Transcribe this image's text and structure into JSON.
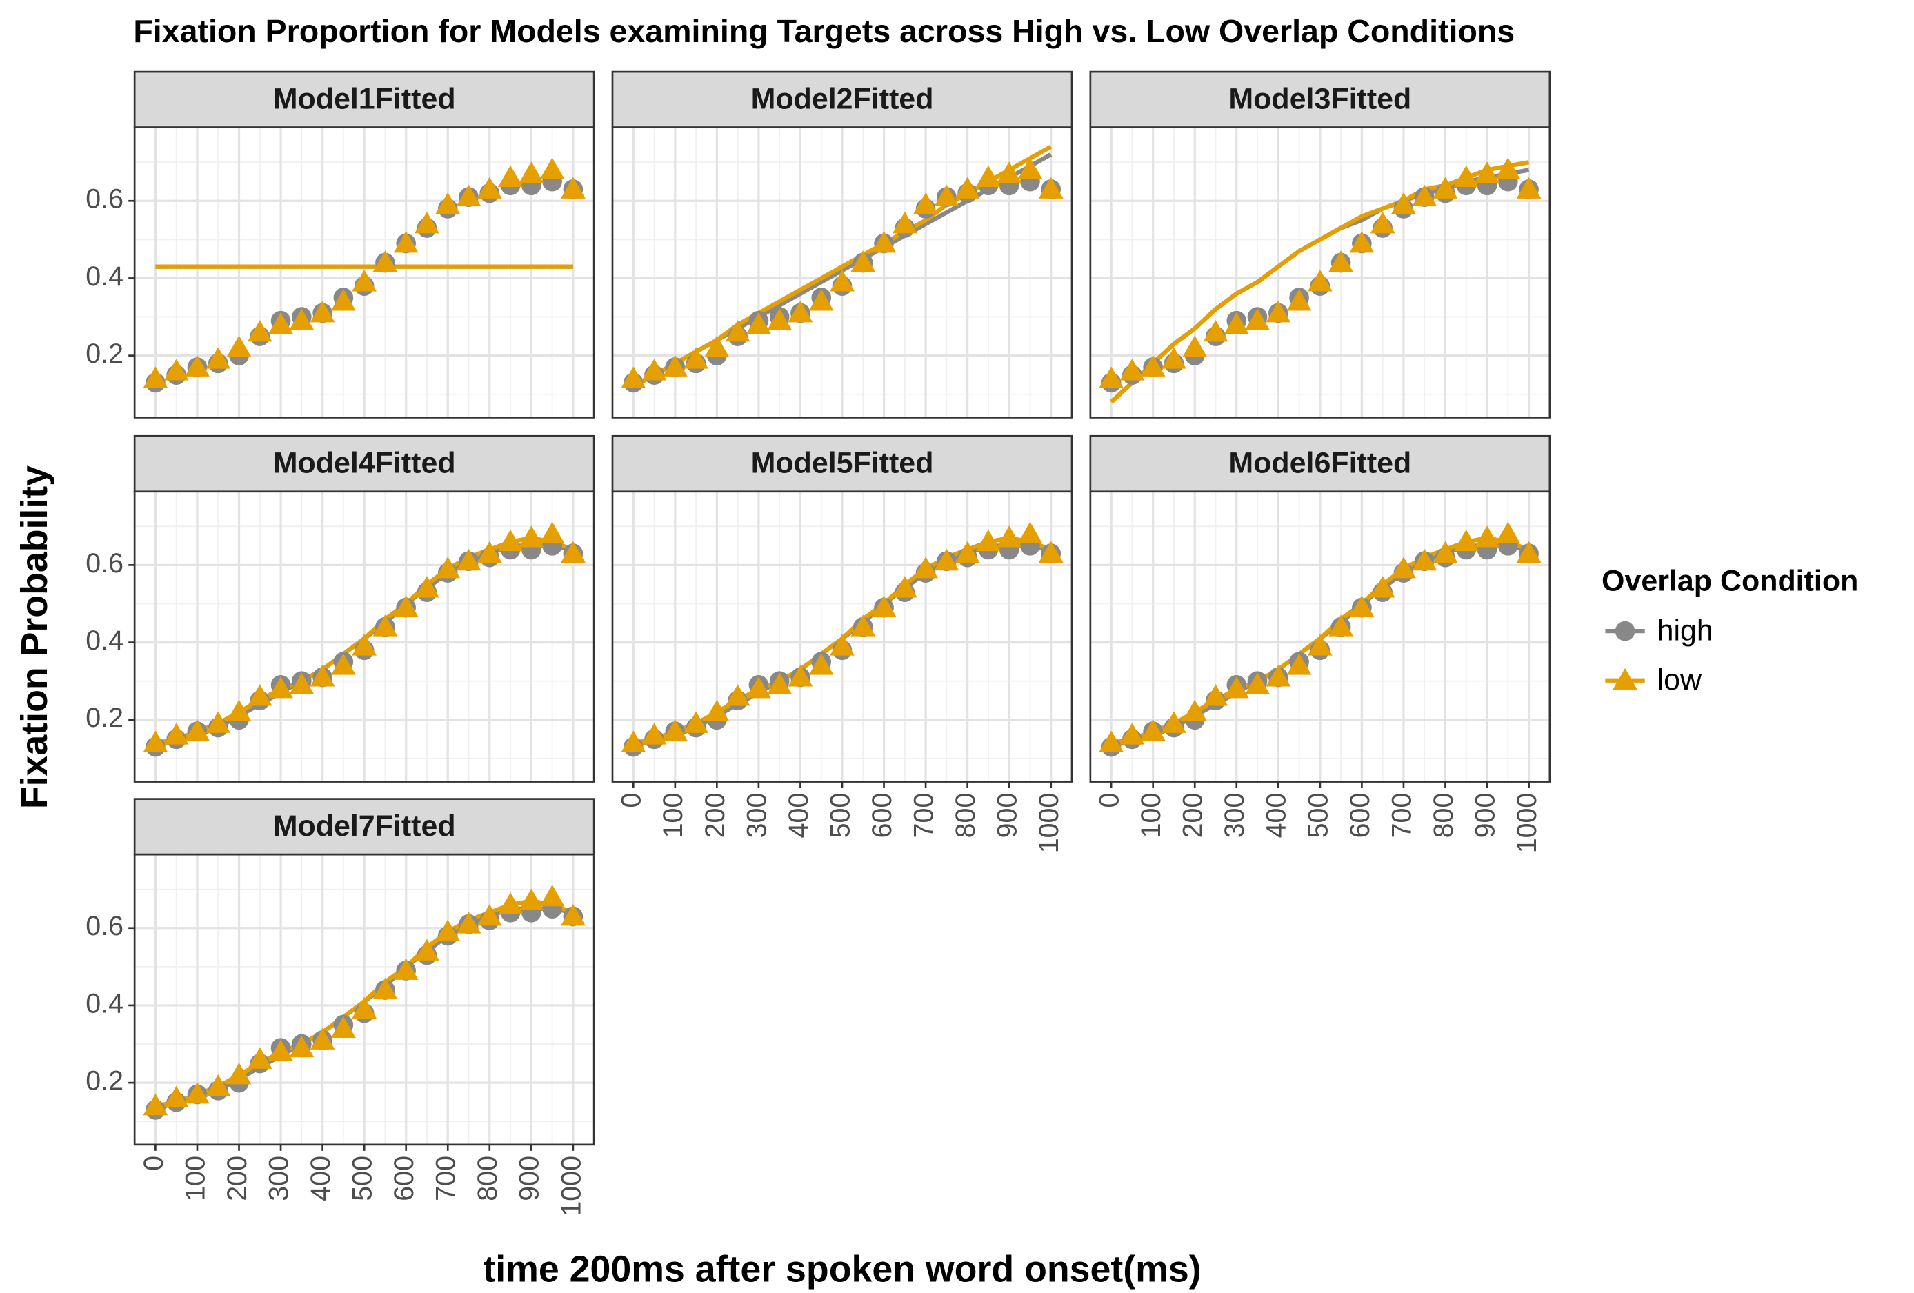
{
  "title": "Fixation Proportion for Models examining Targets across High vs. Low Overlap Conditions",
  "x_label": "time 200ms after spoken word onset(ms)",
  "y_label": "Fixation Probability",
  "legend_title": "Overlap Condition",
  "chart_data": {
    "type": "line",
    "x": [
      0,
      50,
      100,
      150,
      200,
      250,
      300,
      350,
      400,
      450,
      500,
      550,
      600,
      650,
      700,
      750,
      800,
      850,
      900,
      950,
      1000
    ],
    "xlim": [
      -50,
      1050
    ],
    "xticks": [
      0,
      100,
      200,
      300,
      400,
      500,
      600,
      700,
      800,
      900,
      1000
    ],
    "ylim": [
      0.04,
      0.79
    ],
    "yticks": [
      0.2,
      0.4,
      0.6
    ],
    "grid": true,
    "legend": "right",
    "series": [
      {
        "name": "high",
        "color": "#888888",
        "marker": "circle",
        "values": [
          0.13,
          0.15,
          0.17,
          0.18,
          0.2,
          0.25,
          0.29,
          0.3,
          0.31,
          0.35,
          0.38,
          0.44,
          0.49,
          0.53,
          0.58,
          0.61,
          0.62,
          0.64,
          0.64,
          0.65,
          0.63
        ]
      },
      {
        "name": "low",
        "color": "#E69F00",
        "marker": "triangle",
        "values": [
          0.14,
          0.16,
          0.17,
          0.19,
          0.22,
          0.26,
          0.28,
          0.29,
          0.31,
          0.34,
          0.39,
          0.44,
          0.49,
          0.54,
          0.59,
          0.61,
          0.63,
          0.66,
          0.67,
          0.68,
          0.63
        ]
      }
    ],
    "panels": [
      {
        "title": "Model1Fitted",
        "fitted": [
          [
            0.43,
            0.43,
            0.43,
            0.43,
            0.43,
            0.43,
            0.43,
            0.43,
            0.43,
            0.43,
            0.43,
            0.43,
            0.43,
            0.43,
            0.43,
            0.43,
            0.43,
            0.43,
            0.43,
            0.43,
            0.43
          ],
          [
            0.43,
            0.43,
            0.43,
            0.43,
            0.43,
            0.43,
            0.43,
            0.43,
            0.43,
            0.43,
            0.43,
            0.43,
            0.43,
            0.43,
            0.43,
            0.43,
            0.43,
            0.43,
            0.43,
            0.43,
            0.43
          ]
        ]
      },
      {
        "title": "Model2Fitted",
        "fitted": [
          [
            0.12,
            0.15,
            0.18,
            0.21,
            0.24,
            0.27,
            0.3,
            0.33,
            0.36,
            0.39,
            0.42,
            0.45,
            0.48,
            0.51,
            0.54,
            0.57,
            0.6,
            0.63,
            0.66,
            0.69,
            0.72
          ],
          [
            0.12,
            0.15,
            0.18,
            0.21,
            0.24,
            0.28,
            0.31,
            0.34,
            0.37,
            0.4,
            0.43,
            0.46,
            0.49,
            0.52,
            0.55,
            0.59,
            0.62,
            0.65,
            0.68,
            0.71,
            0.74
          ]
        ]
      },
      {
        "title": "Model3Fitted",
        "fitted": [
          [
            0.08,
            0.13,
            0.18,
            0.23,
            0.27,
            0.32,
            0.36,
            0.39,
            0.43,
            0.47,
            0.5,
            0.53,
            0.55,
            0.58,
            0.6,
            0.62,
            0.63,
            0.65,
            0.66,
            0.67,
            0.68
          ],
          [
            0.08,
            0.13,
            0.18,
            0.23,
            0.27,
            0.32,
            0.36,
            0.39,
            0.43,
            0.47,
            0.5,
            0.53,
            0.56,
            0.58,
            0.6,
            0.63,
            0.64,
            0.66,
            0.68,
            0.69,
            0.7
          ]
        ]
      },
      {
        "title": "Model4Fitted",
        "fitted": [
          [
            0.13,
            0.15,
            0.16,
            0.18,
            0.21,
            0.24,
            0.27,
            0.3,
            0.33,
            0.37,
            0.41,
            0.45,
            0.5,
            0.54,
            0.58,
            0.61,
            0.63,
            0.65,
            0.65,
            0.65,
            0.64
          ],
          [
            0.14,
            0.15,
            0.17,
            0.19,
            0.22,
            0.25,
            0.28,
            0.3,
            0.33,
            0.37,
            0.41,
            0.46,
            0.5,
            0.55,
            0.59,
            0.62,
            0.64,
            0.66,
            0.67,
            0.66,
            0.64
          ]
        ]
      },
      {
        "title": "Model5Fitted",
        "fitted": [
          [
            0.13,
            0.15,
            0.16,
            0.18,
            0.21,
            0.24,
            0.27,
            0.3,
            0.33,
            0.37,
            0.41,
            0.45,
            0.5,
            0.54,
            0.58,
            0.61,
            0.63,
            0.65,
            0.65,
            0.65,
            0.64
          ],
          [
            0.14,
            0.15,
            0.17,
            0.19,
            0.22,
            0.25,
            0.28,
            0.3,
            0.33,
            0.37,
            0.41,
            0.46,
            0.5,
            0.55,
            0.59,
            0.62,
            0.64,
            0.66,
            0.67,
            0.66,
            0.64
          ]
        ]
      },
      {
        "title": "Model6Fitted",
        "fitted": [
          [
            0.13,
            0.15,
            0.16,
            0.18,
            0.21,
            0.24,
            0.27,
            0.3,
            0.33,
            0.37,
            0.41,
            0.45,
            0.5,
            0.54,
            0.58,
            0.61,
            0.63,
            0.65,
            0.65,
            0.65,
            0.64
          ],
          [
            0.14,
            0.15,
            0.17,
            0.19,
            0.22,
            0.25,
            0.28,
            0.3,
            0.33,
            0.37,
            0.41,
            0.46,
            0.5,
            0.55,
            0.59,
            0.62,
            0.64,
            0.66,
            0.67,
            0.66,
            0.64
          ]
        ]
      },
      {
        "title": "Model7Fitted",
        "fitted": [
          [
            0.13,
            0.15,
            0.16,
            0.18,
            0.21,
            0.24,
            0.27,
            0.3,
            0.33,
            0.37,
            0.41,
            0.45,
            0.5,
            0.54,
            0.58,
            0.61,
            0.63,
            0.65,
            0.65,
            0.65,
            0.64
          ],
          [
            0.14,
            0.15,
            0.17,
            0.19,
            0.22,
            0.25,
            0.28,
            0.3,
            0.33,
            0.37,
            0.41,
            0.46,
            0.5,
            0.55,
            0.59,
            0.62,
            0.64,
            0.66,
            0.67,
            0.66,
            0.64
          ]
        ]
      }
    ]
  }
}
